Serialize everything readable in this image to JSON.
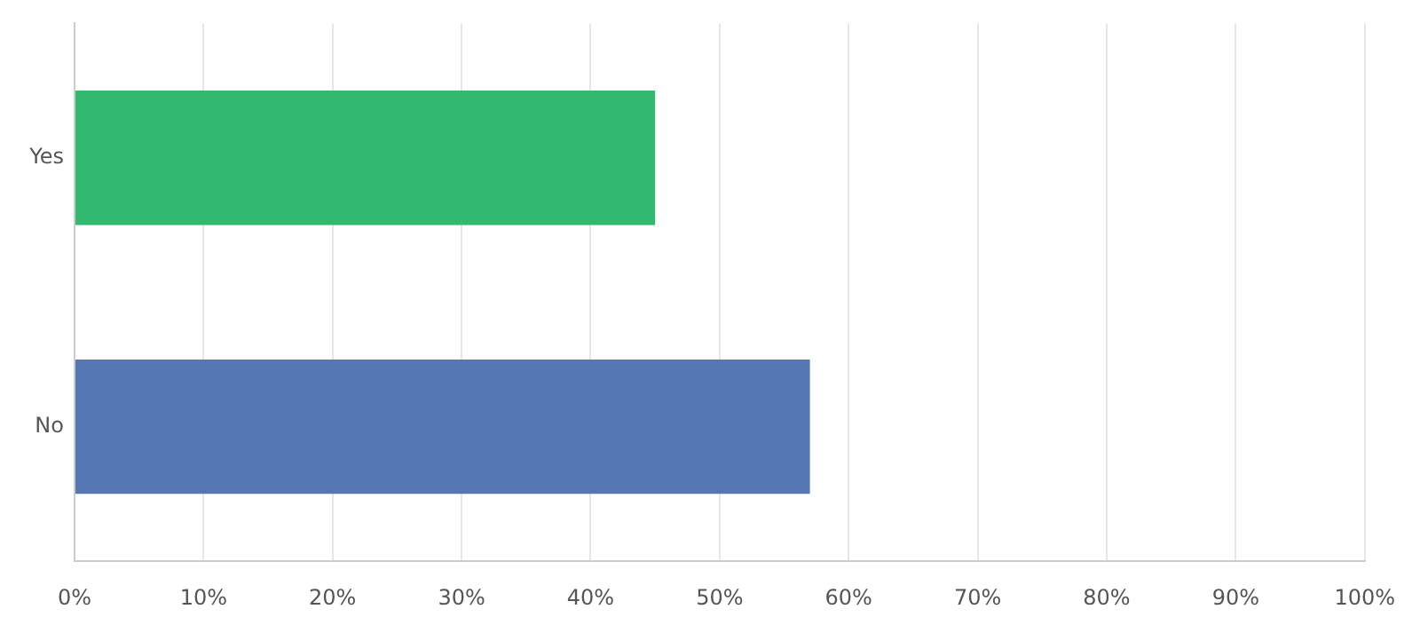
{
  "chart_data": {
    "type": "bar",
    "orientation": "horizontal",
    "categories": [
      "Yes",
      "No"
    ],
    "values": [
      45,
      57
    ],
    "colors": [
      "#33b86f",
      "#5578b5"
    ],
    "xlim": [
      0,
      100
    ],
    "xticks": [
      {
        "value": 0,
        "label": "0%"
      },
      {
        "value": 10,
        "label": "10%"
      },
      {
        "value": 20,
        "label": "20%"
      },
      {
        "value": 30,
        "label": "30%"
      },
      {
        "value": 40,
        "label": "40%"
      },
      {
        "value": 50,
        "label": "50%"
      },
      {
        "value": 60,
        "label": "60%"
      },
      {
        "value": 70,
        "label": "70%"
      },
      {
        "value": 80,
        "label": "80%"
      },
      {
        "value": 90,
        "label": "90%"
      },
      {
        "value": 100,
        "label": "100%"
      }
    ],
    "grid": "x",
    "legend": false
  }
}
